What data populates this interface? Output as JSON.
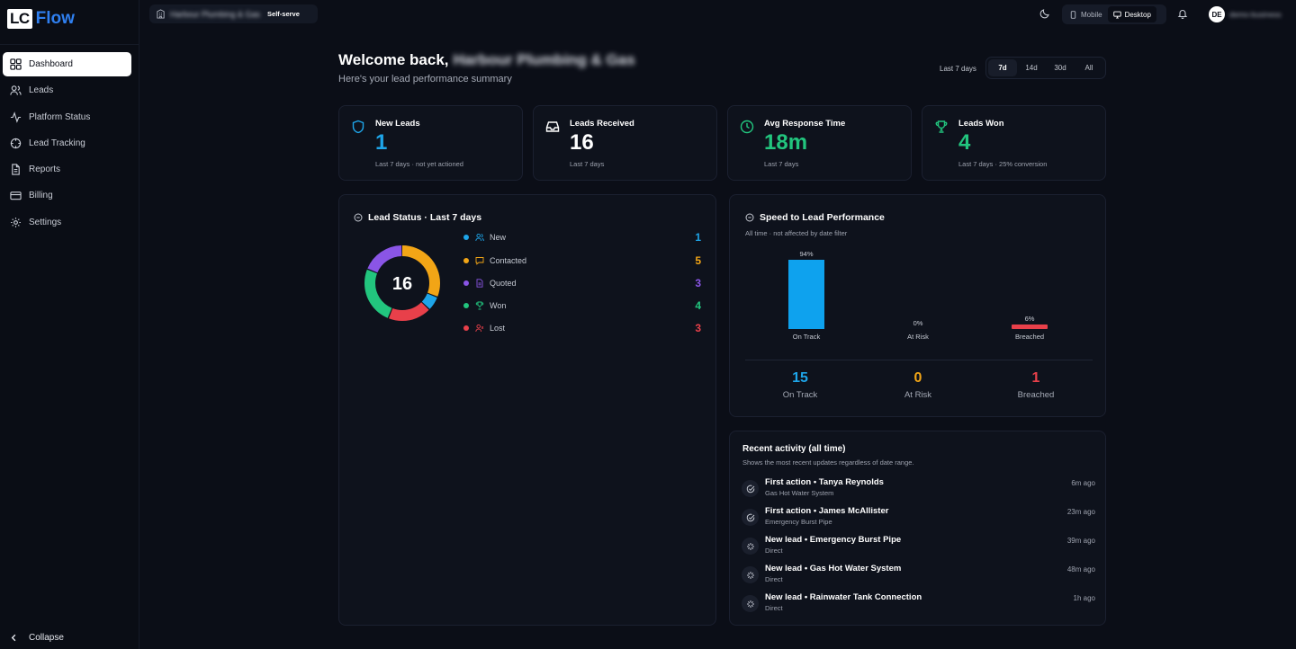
{
  "brand": {
    "lc": "LC",
    "flow": "Flow"
  },
  "sidebar": {
    "items": [
      {
        "label": "Dashboard",
        "icon": "grid-icon",
        "active": true
      },
      {
        "label": "Leads",
        "icon": "users-icon"
      },
      {
        "label": "Platform Status",
        "icon": "activity-icon"
      },
      {
        "label": "Lead Tracking",
        "icon": "crosshair-icon"
      },
      {
        "label": "Reports",
        "icon": "file-icon"
      },
      {
        "label": "Billing",
        "icon": "credit-card-icon"
      },
      {
        "label": "Settings",
        "icon": "gear-icon"
      }
    ],
    "collapse_label": "Collapse"
  },
  "topbar": {
    "business_name": "Harbour Plumbing & Gas",
    "plan_tag": "Self-serve",
    "view_mobile": "Mobile",
    "view_desktop": "Desktop",
    "active_view": "Desktop",
    "avatar_initials": "DE",
    "user_name": "demo-business"
  },
  "header": {
    "welcome": "Welcome back,",
    "business_name": "Harbour Plumbing & Gas",
    "subtitle": "Here's your lead performance summary",
    "range_label": "Last 7 days",
    "ranges": [
      "7d",
      "14d",
      "30d",
      "All"
    ],
    "active_range": "7d"
  },
  "stats": [
    {
      "label": "New Leads",
      "value": "1",
      "sub": "Last 7 days · not yet actioned",
      "color": "#1ea5e9",
      "icon": "shield-icon"
    },
    {
      "label": "Leads Received",
      "value": "16",
      "sub": "Last 7 days",
      "color": "#ffffff",
      "icon": "inbox-icon"
    },
    {
      "label": "Avg Response Time",
      "value": "18m",
      "sub": "Last 7 days",
      "color": "#22c57e",
      "icon": "clock-icon"
    },
    {
      "label": "Leads Won",
      "value": "4",
      "sub": "Last 7 days · 25% conversion",
      "color": "#22c57e",
      "icon": "trophy-icon"
    }
  ],
  "lead_status": {
    "title": "Lead Status · Last 7 days",
    "total": "16",
    "items": [
      {
        "label": "New",
        "count": 1,
        "color": "#1ea5e9"
      },
      {
        "label": "Contacted",
        "count": 5,
        "color": "#f2a516"
      },
      {
        "label": "Quoted",
        "count": 3,
        "color": "#8a55e6"
      },
      {
        "label": "Won",
        "count": 4,
        "color": "#22c57e"
      },
      {
        "label": "Lost",
        "count": 3,
        "color": "#e8404a"
      }
    ]
  },
  "speed": {
    "title": "Speed to Lead Performance",
    "subtitle": "All time · not affected by date filter",
    "bars": [
      {
        "label": "On Track",
        "pct_label": "94%",
        "pct": 94,
        "color": "#0ea2ee"
      },
      {
        "label": "At Risk",
        "pct_label": "0%",
        "pct": 0,
        "color": "#f2a516"
      },
      {
        "label": "Breached",
        "pct_label": "6%",
        "pct": 6,
        "color": "#e8404a"
      }
    ],
    "totals": [
      {
        "value": "15",
        "label": "On Track",
        "color": "#1ea5e9"
      },
      {
        "value": "0",
        "label": "At Risk",
        "color": "#f2a516"
      },
      {
        "value": "1",
        "label": "Breached",
        "color": "#e8404a"
      }
    ]
  },
  "activity": {
    "title": "Recent activity (all time)",
    "subtitle": "Shows the most recent updates regardless of date range.",
    "items": [
      {
        "title": "First action • Tanya Reynolds",
        "sub": "Gas Hot Water System",
        "time": "6m ago",
        "icon": "check-circle-icon"
      },
      {
        "title": "First action • James McAllister",
        "sub": "Emergency Burst Pipe",
        "time": "23m ago",
        "icon": "check-circle-icon"
      },
      {
        "title": "New lead • Emergency Burst Pipe",
        "sub": "Direct",
        "time": "39m ago",
        "icon": "sparkle-icon"
      },
      {
        "title": "New lead • Gas Hot Water System",
        "sub": "Direct",
        "time": "48m ago",
        "icon": "sparkle-icon"
      },
      {
        "title": "New lead • Rainwater Tank Connection",
        "sub": "Direct",
        "time": "1h ago",
        "icon": "sparkle-icon"
      }
    ]
  }
}
